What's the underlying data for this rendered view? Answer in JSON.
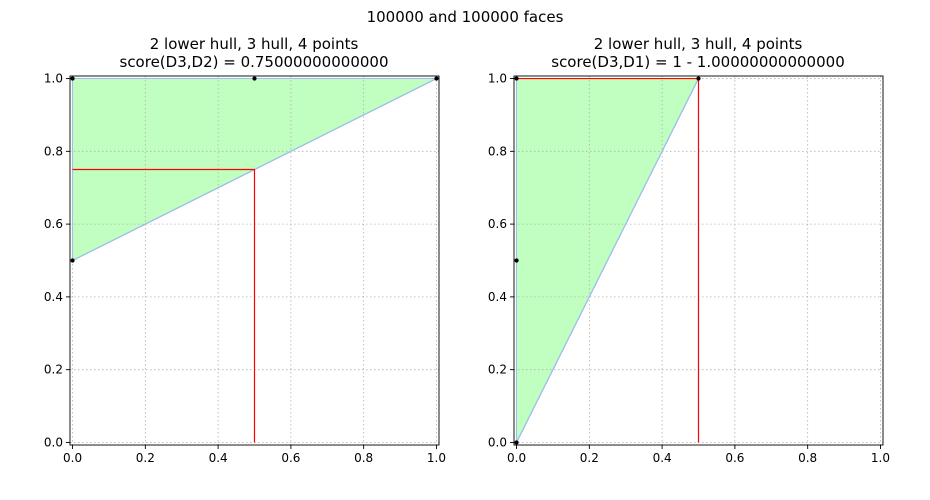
{
  "figure": {
    "title": "100000 and 100000 faces"
  },
  "chart_data": [
    {
      "type": "line",
      "title": "2 lower hull, 3 hull, 4 points",
      "subtitle": "score(D3,D2) = 0.75000000000000",
      "xlim": [
        0,
        1
      ],
      "ylim": [
        0,
        1
      ],
      "xticks": [
        "0.0",
        "0.2",
        "0.4",
        "0.6",
        "0.8",
        "1.0"
      ],
      "yticks": [
        "0.0",
        "0.2",
        "0.4",
        "0.6",
        "0.8",
        "1.0"
      ],
      "grid": true,
      "points": [
        {
          "x": 0.0,
          "y": 1.0
        },
        {
          "x": 0.5,
          "y": 1.0
        },
        {
          "x": 1.0,
          "y": 1.0
        },
        {
          "x": 0.0,
          "y": 0.5
        }
      ],
      "hull": [
        {
          "x": 0.0,
          "y": 0.5
        },
        {
          "x": 1.0,
          "y": 1.0
        },
        {
          "x": 0.0,
          "y": 1.0
        }
      ],
      "lower_hull": [
        {
          "x": 0.0,
          "y": 0.5
        },
        {
          "x": 1.0,
          "y": 1.0
        }
      ],
      "score_lines": [
        {
          "x": 0.0,
          "y": 0.75
        },
        {
          "x": 0.5,
          "y": 0.75
        },
        {
          "x": 0.5,
          "y": 0.0
        }
      ],
      "colors": {
        "fill": "#c0ffc0",
        "hull_line": "#9dbbf0",
        "score_line": "#ff0000",
        "point": "#000000"
      }
    },
    {
      "type": "line",
      "title": "2 lower hull, 3 hull, 4 points",
      "subtitle": "score(D3,D1) = 1 - 1.00000000000000",
      "xlim": [
        0,
        1
      ],
      "ylim": [
        0,
        1
      ],
      "xticks": [
        "0.0",
        "0.2",
        "0.4",
        "0.6",
        "0.8",
        "1.0"
      ],
      "yticks": [
        "0.0",
        "0.2",
        "0.4",
        "0.6",
        "0.8",
        "1.0"
      ],
      "grid": true,
      "points": [
        {
          "x": 0.0,
          "y": 1.0
        },
        {
          "x": 0.5,
          "y": 1.0
        },
        {
          "x": 0.0,
          "y": 0.5
        },
        {
          "x": 0.0,
          "y": 0.0
        }
      ],
      "hull": [
        {
          "x": 0.0,
          "y": 0.0
        },
        {
          "x": 0.5,
          "y": 1.0
        },
        {
          "x": 0.0,
          "y": 1.0
        }
      ],
      "lower_hull": [
        {
          "x": 0.0,
          "y": 0.0
        },
        {
          "x": 0.5,
          "y": 1.0
        }
      ],
      "score_lines": [
        {
          "x": 0.0,
          "y": 1.0
        },
        {
          "x": 0.5,
          "y": 1.0
        },
        {
          "x": 0.5,
          "y": 0.0
        }
      ],
      "colors": {
        "fill": "#c0ffc0",
        "hull_line": "#9dbbf0",
        "score_line": "#ff0000",
        "point": "#000000"
      }
    }
  ]
}
